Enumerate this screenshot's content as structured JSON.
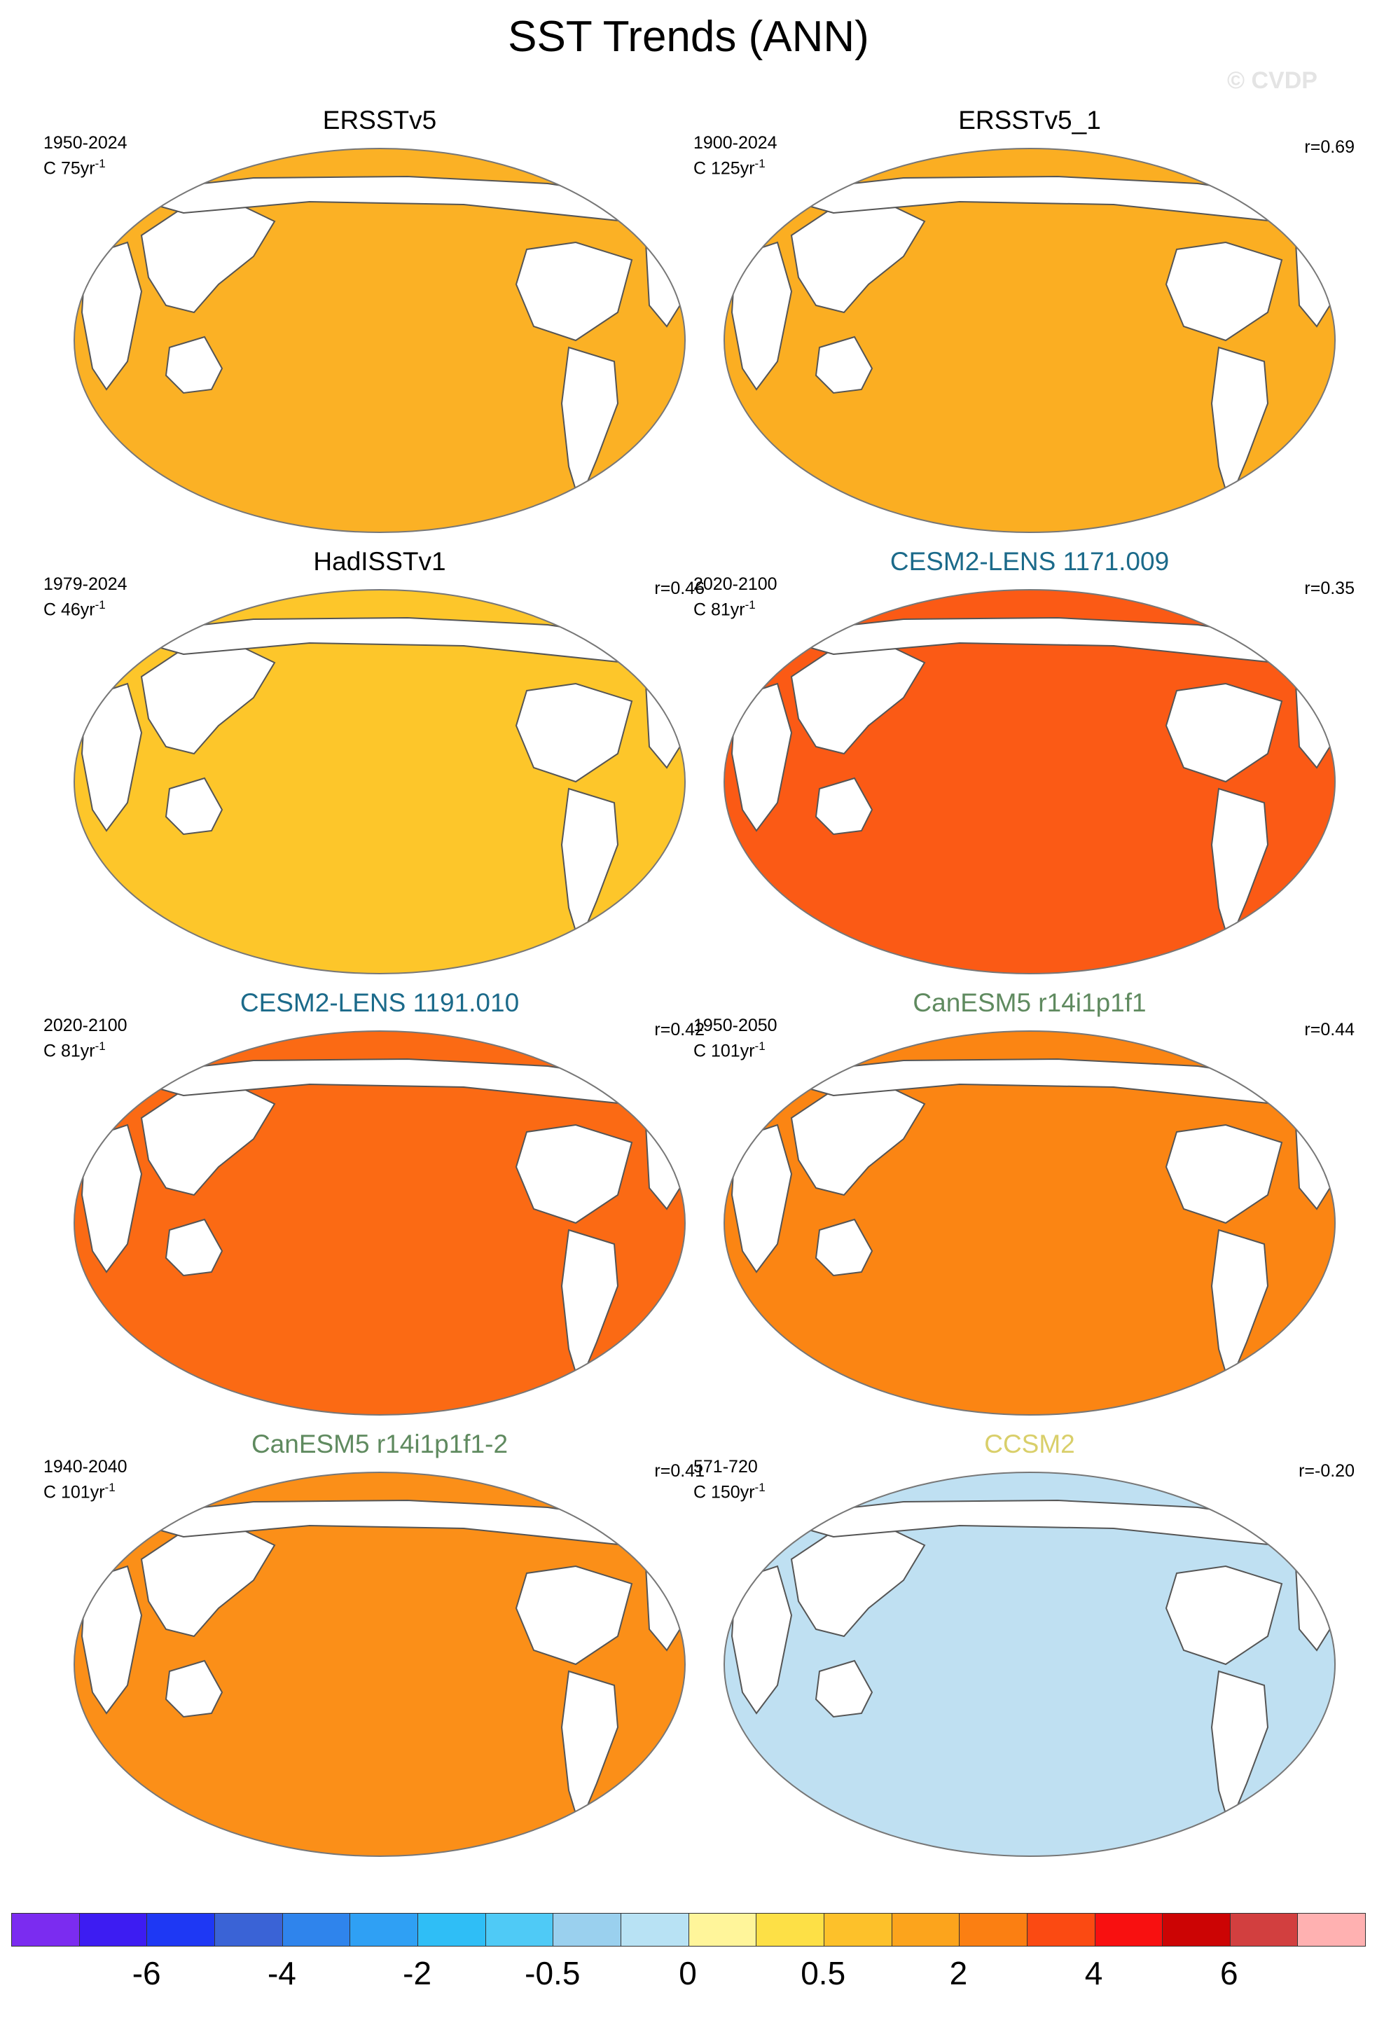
{
  "title": "SST Trends (ANN)",
  "watermark": "© CVDP",
  "panels": [
    {
      "name": "ERSSTv5",
      "name_color": "#000000",
      "period": "1950-2024",
      "units": "C 75yr",
      "units_exp": "-1",
      "corr": "",
      "ocean": "#fbb125"
    },
    {
      "name": "ERSSTv5_1",
      "name_color": "#000000",
      "period": "1900-2024",
      "units": "C 125yr",
      "units_exp": "-1",
      "corr": "r=0.69",
      "ocean": "#fbae22"
    },
    {
      "name": "HadISSTv1",
      "name_color": "#000000",
      "period": "1979-2024",
      "units": "C 46yr",
      "units_exp": "-1",
      "corr": "r=0.46",
      "ocean": "#fdc62a"
    },
    {
      "name": "CESM2-LENS 1171.009",
      "name_color": "#1b6a8a",
      "period": "2020-2100",
      "units": "C 81yr",
      "units_exp": "-1",
      "corr": "r=0.35",
      "ocean": "#fb5a15"
    },
    {
      "name": "CESM2-LENS 1191.010",
      "name_color": "#1b6a8a",
      "period": "2020-2100",
      "units": "C 81yr",
      "units_exp": "-1",
      "corr": "r=0.42",
      "ocean": "#fb6a14"
    },
    {
      "name": "CanESM5 r14i1p1f1",
      "name_color": "#5f8a5f",
      "period": "1950-2050",
      "units": "C 101yr",
      "units_exp": "-1",
      "corr": "r=0.44",
      "ocean": "#fb8513"
    },
    {
      "name": "CanESM5 r14i1p1f1-2",
      "name_color": "#5f8a5f",
      "period": "1940-2040",
      "units": "C 101yr",
      "units_exp": "-1",
      "corr": "r=0.41",
      "ocean": "#fb8f18"
    },
    {
      "name": "CCSM2",
      "name_color": "#d9cf6a",
      "period": "571-720",
      "units": "C 150yr",
      "units_exp": "-1",
      "corr": "r=-0.20",
      "ocean": "#bfe0f2"
    }
  ],
  "colorbar": {
    "colors": [
      "#7b2cf0",
      "#3d1cf2",
      "#1e38f4",
      "#3a63d6",
      "#2f84ec",
      "#2fa0f4",
      "#2fbef6",
      "#4fcaf6",
      "#9ad0ee",
      "#b8e2f4",
      "#fff59a",
      "#fde046",
      "#fdc12a",
      "#fca41c",
      "#fb7f12",
      "#fb4a12",
      "#f81010",
      "#cc0404",
      "#d23f3f",
      "#ffb1b1"
    ],
    "labels": [
      "-6",
      "-4",
      "-2",
      "-0.5",
      "0",
      "0.5",
      "2",
      "4",
      "6"
    ],
    "label_boundaries": [
      2,
      4,
      6,
      8,
      10,
      12,
      14,
      16,
      18
    ]
  }
}
